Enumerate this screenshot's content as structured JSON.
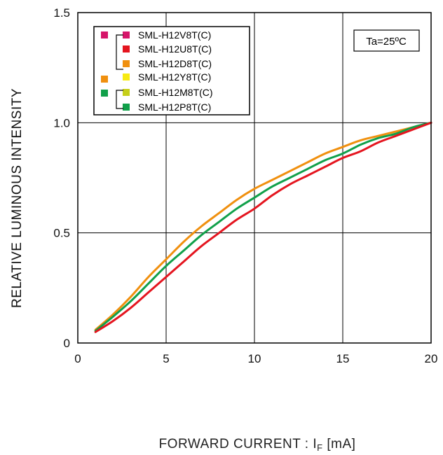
{
  "chart_data": {
    "type": "line",
    "xlabel": "FORWARD CURRENT : I",
    "xlabel_sub": "F",
    "xlabel_unit": " [mA]",
    "ylabel": "RELATIVE LUMINOUS INTENSITY",
    "xlim": [
      0,
      20
    ],
    "ylim": [
      0,
      1.5
    ],
    "x_ticks": [
      "0",
      "5",
      "10",
      "15",
      "20"
    ],
    "y_ticks": [
      "0",
      "0.5",
      "1.0",
      "1.5"
    ],
    "grid": true,
    "annotation": "Ta=25ºC",
    "legend": [
      {
        "label": "SML-H12V8T(C)",
        "group_color": "#d6156a",
        "color": "#d6156a"
      },
      {
        "label": "SML-H12U8T(C)",
        "group_color": "#d6156a",
        "color": "#e4151f"
      },
      {
        "label": "SML-H12D8T(C)",
        "group_color": "#d6156a",
        "color": "#f0900f"
      },
      {
        "label": "SML-H12Y8T(C)",
        "group_color": "#f0900f",
        "color": "#f7ea12"
      },
      {
        "label": "SML-H12M8T(C)",
        "group_color": "#11a04a",
        "color": "#c6cf1a"
      },
      {
        "label": "SML-H12P8T(C)",
        "group_color": "#11a04a",
        "color": "#11a04a"
      }
    ],
    "series": [
      {
        "color": "#f0900f",
        "x": [
          1,
          2,
          3,
          4,
          5,
          6,
          7,
          8,
          9,
          10,
          11,
          12,
          13,
          14,
          15,
          16,
          17,
          18,
          19,
          20
        ],
        "y": [
          0.06,
          0.13,
          0.21,
          0.3,
          0.38,
          0.46,
          0.53,
          0.59,
          0.65,
          0.7,
          0.74,
          0.78,
          0.82,
          0.86,
          0.89,
          0.92,
          0.94,
          0.96,
          0.98,
          1.0
        ]
      },
      {
        "color": "#11a04a",
        "x": [
          1,
          2,
          3,
          4,
          5,
          6,
          7,
          8,
          9,
          10,
          11,
          12,
          13,
          14,
          15,
          16,
          17,
          18,
          19,
          20
        ],
        "y": [
          0.055,
          0.12,
          0.19,
          0.27,
          0.35,
          0.42,
          0.49,
          0.55,
          0.61,
          0.66,
          0.71,
          0.75,
          0.79,
          0.83,
          0.86,
          0.9,
          0.93,
          0.95,
          0.98,
          1.0
        ]
      },
      {
        "color": "#e4151f",
        "x": [
          1,
          2,
          3,
          4,
          5,
          6,
          7,
          8,
          9,
          10,
          11,
          12,
          13,
          14,
          15,
          16,
          17,
          18,
          19,
          20
        ],
        "y": [
          0.05,
          0.1,
          0.16,
          0.23,
          0.3,
          0.37,
          0.44,
          0.5,
          0.56,
          0.61,
          0.67,
          0.72,
          0.76,
          0.8,
          0.84,
          0.87,
          0.91,
          0.94,
          0.97,
          1.0
        ]
      }
    ]
  }
}
